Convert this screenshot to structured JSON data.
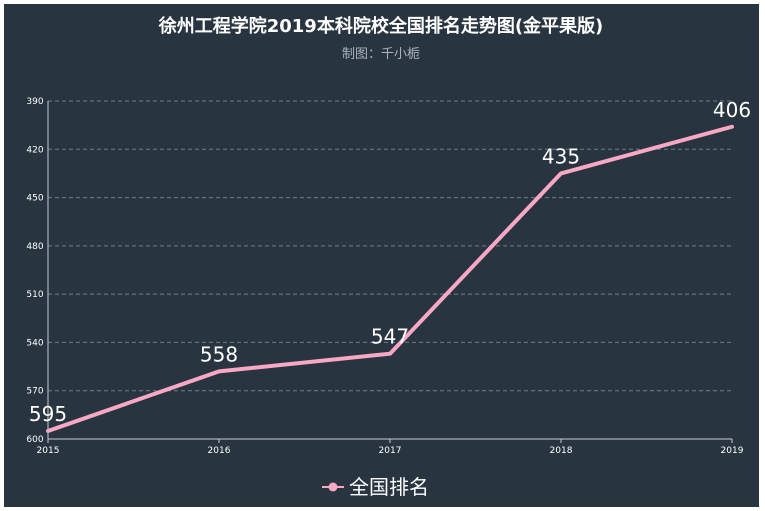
{
  "chart_data": {
    "type": "line",
    "title": "徐州工程学院2019本科院校全国排名走势图(金平果版)",
    "subtitle": "制图：千小栀",
    "categories": [
      "2015",
      "2016",
      "2017",
      "2018",
      "2019"
    ],
    "series": [
      {
        "name": "全国排名",
        "values": [
          595,
          558,
          547,
          435,
          406
        ],
        "color": "#f9a8c3"
      }
    ],
    "y_axis": {
      "inverse": true,
      "min": 390,
      "max": 600,
      "ticks": [
        390,
        420,
        450,
        480,
        510,
        540,
        570,
        600
      ]
    },
    "grid": true,
    "legend_position": "bottom-center",
    "background": "#283440"
  }
}
